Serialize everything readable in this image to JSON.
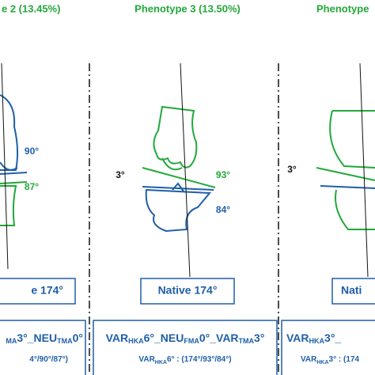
{
  "panels": [
    {
      "title": "e 2 (13.45%)",
      "angles": [
        "90°",
        "87°"
      ],
      "native": "e 174°",
      "formula": [
        [
          "",
          "MA",
          "3°"
        ],
        [
          "_NEU",
          "TMA",
          "0°"
        ]
      ],
      "summary": [
        [
          "",
          "",
          "4°/90°/87°)"
        ]
      ]
    },
    {
      "title": "Phenotype 3 (13.50%)",
      "angles": [
        "3°",
        "93°",
        "84°"
      ],
      "native": "Native 174°",
      "formula": [
        [
          "VAR",
          "HKA",
          "6°"
        ],
        [
          "_NEU",
          "FMA",
          "0°"
        ],
        [
          "_VAR",
          "TMA",
          "3°"
        ]
      ],
      "summary": [
        [
          "VAR",
          "HKA",
          "6° : (174°/93°/84°)"
        ]
      ]
    },
    {
      "title": "Phenotype",
      "angles": [
        "3°"
      ],
      "native": "Nati",
      "formula": [
        [
          "VAR",
          "HKA",
          "3°_"
        ]
      ],
      "summary": [
        [
          "VAR",
          "HKA",
          "3° : (174"
        ]
      ]
    }
  ]
}
